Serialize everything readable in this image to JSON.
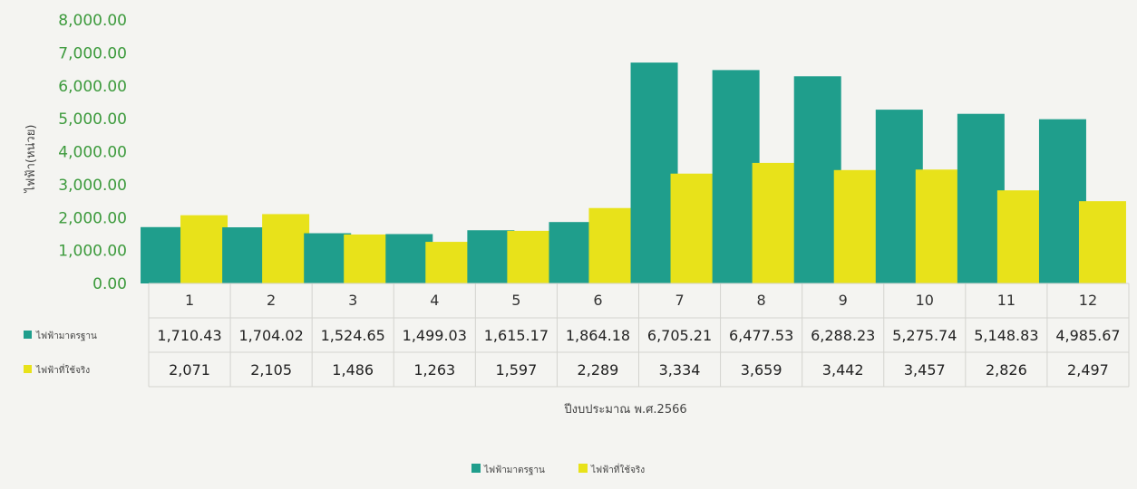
{
  "chart_data": {
    "type": "bar",
    "ylabel": "ไฟฟ้า(หน่วย)",
    "xlabel": "ปีงบประมาณ พ.ศ.2566",
    "ylim": [
      0,
      8000
    ],
    "yticks": [
      "0.00",
      "1,000.00",
      "2,000.00",
      "3,000.00",
      "4,000.00",
      "5,000.00",
      "6,000.00",
      "7,000.00",
      "8,000.00"
    ],
    "categories": [
      "1",
      "2",
      "3",
      "4",
      "5",
      "6",
      "7",
      "8",
      "9",
      "10",
      "11",
      "12"
    ],
    "legend_position": "bottom-center",
    "series": [
      {
        "name": "ไฟฟ้ามาตรฐาน",
        "color": "#1f9e8c",
        "values": [
          1710.43,
          1704.02,
          1524.65,
          1499.03,
          1615.17,
          1864.18,
          6705.21,
          6477.53,
          6288.23,
          5275.74,
          5148.83,
          4985.67
        ],
        "labels": [
          "1,710.43",
          "1,704.02",
          "1,524.65",
          "1,499.03",
          "1,615.17",
          "1,864.18",
          "6,705.21",
          "6,477.53",
          "6,288.23",
          "5,275.74",
          "5,148.83",
          "4,985.67"
        ]
      },
      {
        "name": "ไฟฟ้าที่ใช้จริง",
        "color": "#e8e21a",
        "values": [
          2071,
          2105,
          1486,
          1263,
          1597,
          2289,
          3334,
          3659,
          3442,
          3457,
          2826,
          2497
        ],
        "labels": [
          "2,071",
          "2,105",
          "1,486",
          "1,263",
          "1,597",
          "2,289",
          "3,334",
          "3,659",
          "3,442",
          "3,457",
          "2,826",
          "2,497"
        ]
      }
    ]
  }
}
